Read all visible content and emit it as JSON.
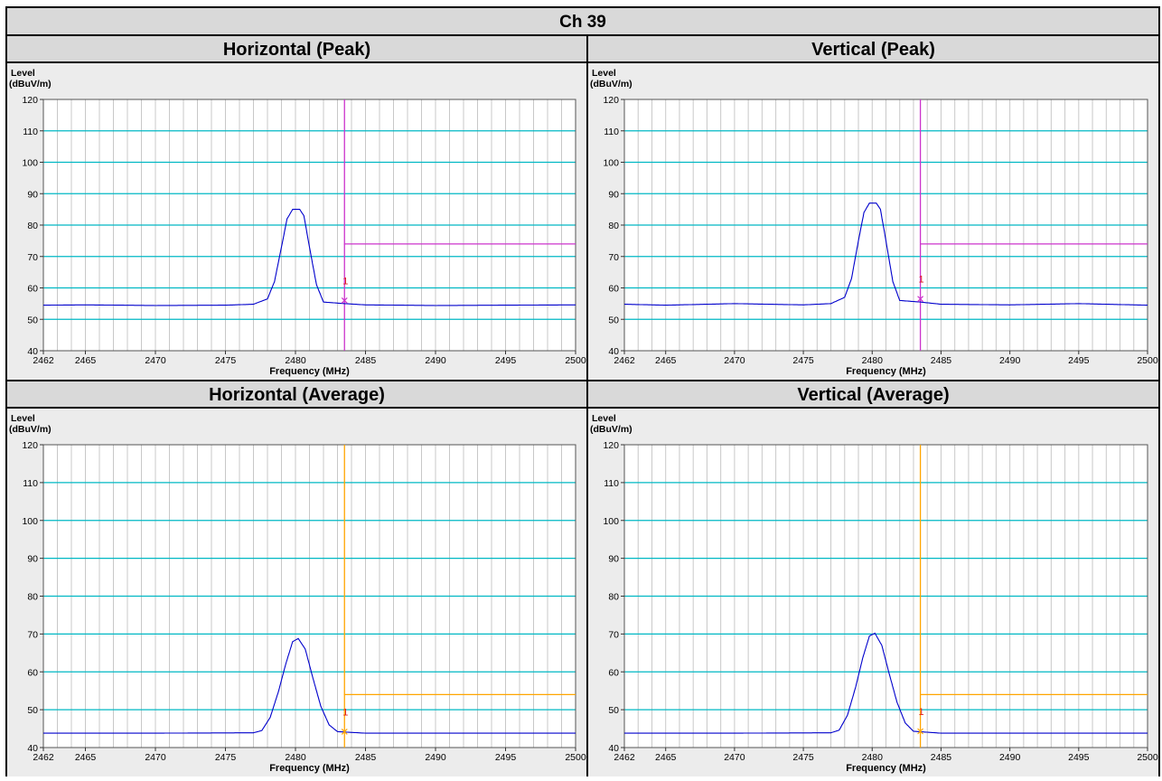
{
  "page": {
    "title": "Ch 39"
  },
  "chart_data": [
    {
      "type": "line",
      "title": "Horizontal (Peak)",
      "ylabel_line1": "Level",
      "ylabel_line2": "(dBuV/m)",
      "xlabel": "Frequency (MHz)",
      "xlim": [
        2462,
        2500
      ],
      "ylim": [
        40,
        120
      ],
      "x_ticks": [
        2462,
        2465,
        2470,
        2475,
        2480,
        2485,
        2490,
        2495,
        2500
      ],
      "y_ticks": [
        40,
        50,
        60,
        70,
        80,
        90,
        100,
        110,
        120
      ],
      "grid": true,
      "series": [
        {
          "name": "",
          "color": "#0000cc",
          "x": [
            2462,
            2465,
            2470,
            2475,
            2477,
            2478,
            2478.5,
            2479,
            2479.4,
            2479.8,
            2480.3,
            2480.6,
            2481,
            2481.5,
            2482,
            2483.5,
            2485,
            2490,
            2495,
            2500
          ],
          "y": [
            54.5,
            54.6,
            54.4,
            54.5,
            54.8,
            56.5,
            62,
            73,
            82,
            85,
            85,
            83,
            73,
            61,
            55.5,
            55,
            54.6,
            54.4,
            54.5,
            54.6
          ]
        }
      ],
      "limit_line": {
        "color": "#cc33cc",
        "x": 2483.5,
        "y": 74
      },
      "marker": {
        "label": "1",
        "x": 2483.5,
        "y": 56,
        "color": "#cc33cc"
      }
    },
    {
      "type": "line",
      "title": "Vertical (Peak)",
      "ylabel_line1": "Level",
      "ylabel_line2": "(dBuV/m)",
      "xlabel": "Frequency (MHz)",
      "xlim": [
        2462,
        2500
      ],
      "ylim": [
        40,
        120
      ],
      "x_ticks": [
        2462,
        2465,
        2470,
        2475,
        2480,
        2485,
        2490,
        2495,
        2500
      ],
      "y_ticks": [
        40,
        50,
        60,
        70,
        80,
        90,
        100,
        110,
        120
      ],
      "grid": true,
      "series": [
        {
          "name": "",
          "color": "#0000cc",
          "x": [
            2462,
            2465,
            2470,
            2475,
            2477,
            2478,
            2478.5,
            2479,
            2479.4,
            2479.8,
            2480.3,
            2480.6,
            2481,
            2481.5,
            2482,
            2483.5,
            2485,
            2490,
            2495,
            2500
          ],
          "y": [
            54.8,
            54.5,
            55,
            54.6,
            55,
            57,
            63,
            75,
            84,
            87,
            87,
            85,
            75,
            62,
            56,
            55.5,
            54.8,
            54.6,
            55,
            54.5
          ]
        }
      ],
      "limit_line": {
        "color": "#cc33cc",
        "x": 2483.5,
        "y": 74
      },
      "marker": {
        "label": "1",
        "x": 2483.5,
        "y": 56.5,
        "color": "#cc33cc"
      }
    },
    {
      "type": "line",
      "title": "Horizontal (Average)",
      "ylabel_line1": "Level",
      "ylabel_line2": "(dBuV/m)",
      "xlabel": "Frequency (MHz)",
      "xlim": [
        2462,
        2500
      ],
      "ylim": [
        40,
        120
      ],
      "x_ticks": [
        2462,
        2465,
        2470,
        2475,
        2480,
        2485,
        2490,
        2495,
        2500
      ],
      "y_ticks": [
        40,
        50,
        60,
        70,
        80,
        90,
        100,
        110,
        120
      ],
      "grid": true,
      "series": [
        {
          "name": "",
          "color": "#0000cc",
          "x": [
            2462,
            2470,
            2477,
            2477.6,
            2478.2,
            2478.8,
            2479.3,
            2479.8,
            2480.2,
            2480.7,
            2481.2,
            2481.8,
            2482.4,
            2483,
            2485,
            2490,
            2495,
            2500
          ],
          "y": [
            43.8,
            43.8,
            43.9,
            44.5,
            48,
            55,
            62,
            68,
            68.8,
            66,
            59,
            51,
            46,
            44.2,
            43.8,
            43.8,
            43.8,
            43.8
          ]
        }
      ],
      "limit_line": {
        "color": "#ffa500",
        "x": 2483.5,
        "y": 54
      },
      "marker": {
        "label": "1",
        "x": 2483.5,
        "y": 44.2,
        "color": "#ffa500"
      }
    },
    {
      "type": "line",
      "title": "Vertical (Average)",
      "ylabel_line1": "Level",
      "ylabel_line2": "(dBuV/m)",
      "xlabel": "Frequency (MHz)",
      "xlim": [
        2462,
        2500
      ],
      "ylim": [
        40,
        120
      ],
      "x_ticks": [
        2462,
        2465,
        2470,
        2475,
        2480,
        2485,
        2490,
        2495,
        2500
      ],
      "y_ticks": [
        40,
        50,
        60,
        70,
        80,
        90,
        100,
        110,
        120
      ],
      "grid": true,
      "series": [
        {
          "name": "",
          "color": "#0000cc",
          "x": [
            2462,
            2470,
            2477,
            2477.6,
            2478.2,
            2478.8,
            2479.3,
            2479.8,
            2480.2,
            2480.7,
            2481.2,
            2481.8,
            2482.4,
            2483,
            2485,
            2490,
            2495,
            2500
          ],
          "y": [
            43.8,
            43.8,
            43.9,
            44.6,
            48.5,
            56,
            63.5,
            69.5,
            70.2,
            67,
            60,
            52,
            46.5,
            44.3,
            43.8,
            43.8,
            43.8,
            43.8
          ]
        }
      ],
      "limit_line": {
        "color": "#ffa500",
        "x": 2483.5,
        "y": 54
      },
      "marker": {
        "label": "1",
        "x": 2483.5,
        "y": 44.3,
        "color": "#ffa500"
      }
    }
  ]
}
